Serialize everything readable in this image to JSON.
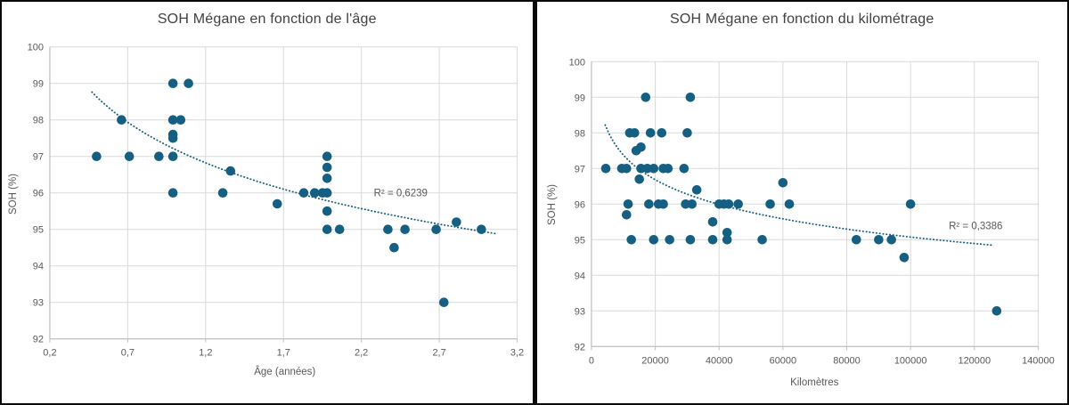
{
  "colors": {
    "accent": "#156082",
    "gridline": "#D9D9D9",
    "axis_line": "#BFBFBF",
    "tick_text": "#595959",
    "title_text": "#404040",
    "divider": "#0a0a0a"
  },
  "chart_data": [
    {
      "type": "scatter",
      "title": "SOH Mégane en fonction de l'âge",
      "xlabel": "Âge (années)",
      "ylabel": "SOH (%)",
      "xlim": [
        0.2,
        3.2
      ],
      "ylim": [
        92,
        100
      ],
      "grid": true,
      "xticks": [
        {
          "v": 0.2,
          "label": "0,2"
        },
        {
          "v": 0.7,
          "label": "0,7"
        },
        {
          "v": 1.2,
          "label": "1,2"
        },
        {
          "v": 1.7,
          "label": "1,7"
        },
        {
          "v": 2.2,
          "label": "2,2"
        },
        {
          "v": 2.7,
          "label": "2,7"
        },
        {
          "v": 3.2,
          "label": "3,2"
        }
      ],
      "yticks": [
        {
          "v": 92,
          "label": "92"
        },
        {
          "v": 93,
          "label": "93"
        },
        {
          "v": 94,
          "label": "94"
        },
        {
          "v": 95,
          "label": "95"
        },
        {
          "v": 96,
          "label": "96"
        },
        {
          "v": 97,
          "label": "97"
        },
        {
          "v": 98,
          "label": "98"
        },
        {
          "v": 99,
          "label": "99"
        },
        {
          "v": 100,
          "label": "100"
        }
      ],
      "points": [
        [
          0.5,
          97
        ],
        [
          0.66,
          98
        ],
        [
          0.71,
          97
        ],
        [
          0.9,
          97
        ],
        [
          0.99,
          99
        ],
        [
          1.09,
          99
        ],
        [
          0.99,
          98
        ],
        [
          1.04,
          98
        ],
        [
          0.99,
          97.6
        ],
        [
          0.99,
          97.5
        ],
        [
          0.99,
          97
        ],
        [
          0.99,
          96
        ],
        [
          1.31,
          96
        ],
        [
          1.36,
          96.6
        ],
        [
          1.66,
          95.7
        ],
        [
          1.83,
          96
        ],
        [
          1.9,
          96
        ],
        [
          1.95,
          96
        ],
        [
          1.98,
          96
        ],
        [
          1.98,
          97
        ],
        [
          1.98,
          96.7
        ],
        [
          1.98,
          96.4
        ],
        [
          1.98,
          95.5
        ],
        [
          1.98,
          95
        ],
        [
          2.06,
          95
        ],
        [
          2.37,
          95
        ],
        [
          2.41,
          94.5
        ],
        [
          2.48,
          95
        ],
        [
          2.68,
          95
        ],
        [
          2.73,
          93
        ],
        [
          2.81,
          95.2
        ],
        [
          2.97,
          95
        ]
      ],
      "trendline": {
        "style": "dotted",
        "type": "log",
        "a": 97.2,
        "b": -2.07,
        "x_unit": 1,
        "x_start": 0.47,
        "x_end": 3.06
      },
      "r2": {
        "label": "R² = 0,6239",
        "x": 2.28,
        "y": 96.0
      }
    },
    {
      "type": "scatter",
      "title": "SOH Mégane en fonction du kilométrage",
      "xlabel": "Kilomètres",
      "ylabel": "SOH (%)",
      "xlim": [
        0,
        140000
      ],
      "ylim": [
        92,
        100
      ],
      "grid": true,
      "xticks": [
        {
          "v": 0,
          "label": "0"
        },
        {
          "v": 20000,
          "label": "20000"
        },
        {
          "v": 40000,
          "label": "40000"
        },
        {
          "v": 60000,
          "label": "60000"
        },
        {
          "v": 80000,
          "label": "80000"
        },
        {
          "v": 100000,
          "label": "100000"
        },
        {
          "v": 120000,
          "label": "120000"
        },
        {
          "v": 140000,
          "label": "140000"
        }
      ],
      "yticks": [
        {
          "v": 92,
          "label": "92"
        },
        {
          "v": 93,
          "label": "93"
        },
        {
          "v": 94,
          "label": "94"
        },
        {
          "v": 95,
          "label": "95"
        },
        {
          "v": 96,
          "label": "96"
        },
        {
          "v": 97,
          "label": "97"
        },
        {
          "v": 98,
          "label": "98"
        },
        {
          "v": 99,
          "label": "99"
        },
        {
          "v": 100,
          "label": "100"
        }
      ],
      "points": [
        [
          17000,
          99
        ],
        [
          31000,
          99
        ],
        [
          12000,
          98
        ],
        [
          13500,
          98
        ],
        [
          18500,
          98
        ],
        [
          22000,
          98
        ],
        [
          30000,
          98
        ],
        [
          15500,
          97.6
        ],
        [
          14000,
          97.5
        ],
        [
          4500,
          97
        ],
        [
          9500,
          97
        ],
        [
          11000,
          97
        ],
        [
          15500,
          97
        ],
        [
          17500,
          97
        ],
        [
          19500,
          97
        ],
        [
          22500,
          97
        ],
        [
          24000,
          97
        ],
        [
          29000,
          97
        ],
        [
          15000,
          96.7
        ],
        [
          60000,
          96.6
        ],
        [
          33000,
          96.4
        ],
        [
          11500,
          96
        ],
        [
          18000,
          96
        ],
        [
          21000,
          96
        ],
        [
          22500,
          96
        ],
        [
          29500,
          96
        ],
        [
          31500,
          96
        ],
        [
          40000,
          96
        ],
        [
          41500,
          96
        ],
        [
          43000,
          96
        ],
        [
          46000,
          96
        ],
        [
          56000,
          96
        ],
        [
          62000,
          96
        ],
        [
          100000,
          96
        ],
        [
          11000,
          95.7
        ],
        [
          38000,
          95.5
        ],
        [
          42500,
          95.2
        ],
        [
          12500,
          95
        ],
        [
          19500,
          95
        ],
        [
          24500,
          95
        ],
        [
          31000,
          95
        ],
        [
          38000,
          95
        ],
        [
          42500,
          95
        ],
        [
          53500,
          95
        ],
        [
          83000,
          95
        ],
        [
          90000,
          95
        ],
        [
          94000,
          95
        ],
        [
          98000,
          94.5
        ],
        [
          127000,
          93
        ]
      ],
      "trendline": {
        "style": "dotted",
        "type": "log",
        "a": 99.68,
        "b": -1.0,
        "x_unit": 1000,
        "x_start": 4300,
        "x_end": 126000
      },
      "r2": {
        "label": "R² = 0,3386",
        "x": 112000,
        "y": 95.4
      }
    }
  ]
}
